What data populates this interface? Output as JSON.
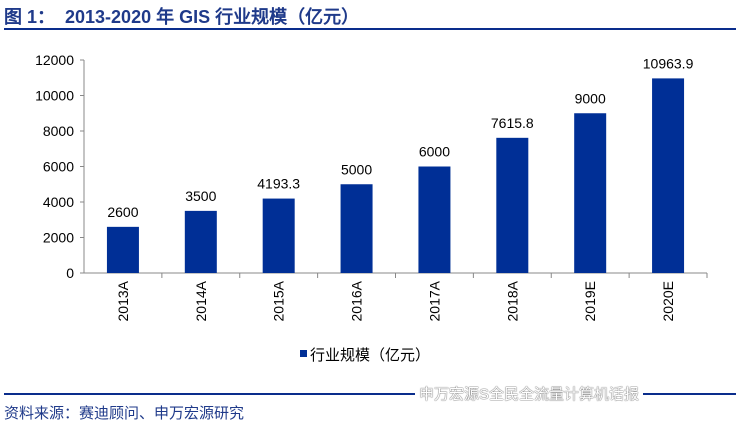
{
  "title": "图 1：  2013-2020 年 GIS 行业规模（亿元）",
  "source": "资料来源：赛迪顾问、申万宏源研究",
  "watermark": "申万宏源S全民全流量计算机话报",
  "colors": {
    "bar": "#002F96",
    "title": "#1f3a8a"
  },
  "chart_data": {
    "type": "bar",
    "categories": [
      "2013A",
      "2014A",
      "2015A",
      "2016A",
      "2017A",
      "2018A",
      "2019E",
      "2020E"
    ],
    "series": [
      {
        "name": "行业规模（亿元）",
        "values": [
          2600,
          3500,
          4193.3,
          5000,
          6000,
          7615.8,
          9000,
          10963.9
        ]
      }
    ],
    "data_labels": [
      "2600",
      "3500",
      "4193.3",
      "5000",
      "6000",
      "7615.8",
      "9000",
      "10963.9"
    ],
    "ylim": [
      0,
      12000
    ],
    "yticks": [
      0,
      2000,
      4000,
      6000,
      8000,
      10000,
      12000
    ],
    "grid": false,
    "legend": "bottom"
  }
}
